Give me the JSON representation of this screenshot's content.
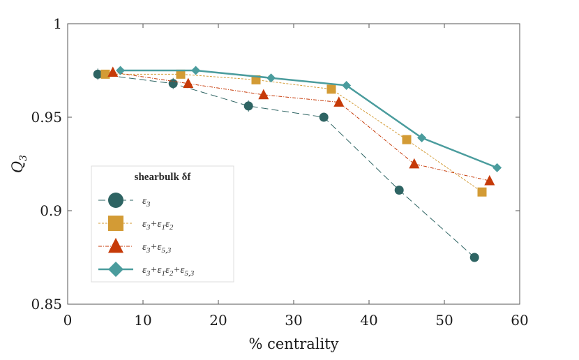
{
  "chart_data": {
    "type": "line",
    "title": "",
    "xlabel": "% centrality",
    "ylabel": "Q3",
    "xlim": [
      0,
      60
    ],
    "ylim": [
      0.85,
      1.0
    ],
    "x_ticks": [
      "0",
      "10",
      "20",
      "30",
      "40",
      "50",
      "60"
    ],
    "y_ticks": [
      "0.85",
      "0.9",
      "0.95",
      "1"
    ],
    "grid": false,
    "legend": {
      "title": "shearbulk δf",
      "placement": "bottom-left"
    },
    "series": [
      {
        "name": "ε3",
        "color": "#2e6463",
        "marker": "circle",
        "line_style": "dashed",
        "x": [
          4,
          14,
          24,
          34,
          44,
          54
        ],
        "y": [
          0.973,
          0.968,
          0.956,
          0.95,
          0.911,
          0.875
        ],
        "error": [
          0.003,
          0.003,
          0.003,
          0.0,
          0.0,
          0.0
        ]
      },
      {
        "name": "ε3+ε1ε2",
        "color": "#d39b35",
        "marker": "square",
        "line_style": "dotted",
        "x": [
          5,
          15,
          25,
          35,
          45,
          55
        ],
        "y": [
          0.973,
          0.973,
          0.97,
          0.965,
          0.938,
          0.91
        ],
        "error": [
          0,
          0,
          0,
          0,
          0,
          0
        ]
      },
      {
        "name": "ε3+ε5,3",
        "color": "#c63a08",
        "marker": "triangle",
        "line_style": "dashdot",
        "x": [
          6,
          16,
          26,
          36,
          46,
          56
        ],
        "y": [
          0.974,
          0.968,
          0.962,
          0.958,
          0.925,
          0.916
        ],
        "error": [
          0,
          0,
          0,
          0,
          0,
          0
        ]
      },
      {
        "name": "ε3+ε1ε2+ε5,3",
        "color": "#4a9c9d",
        "marker": "diamond",
        "line_style": "solid",
        "x": [
          7,
          17,
          27,
          37,
          47,
          57
        ],
        "y": [
          0.975,
          0.975,
          0.971,
          0.967,
          0.939,
          0.923
        ],
        "error": [
          0,
          0,
          0,
          0,
          0,
          0
        ]
      }
    ]
  }
}
